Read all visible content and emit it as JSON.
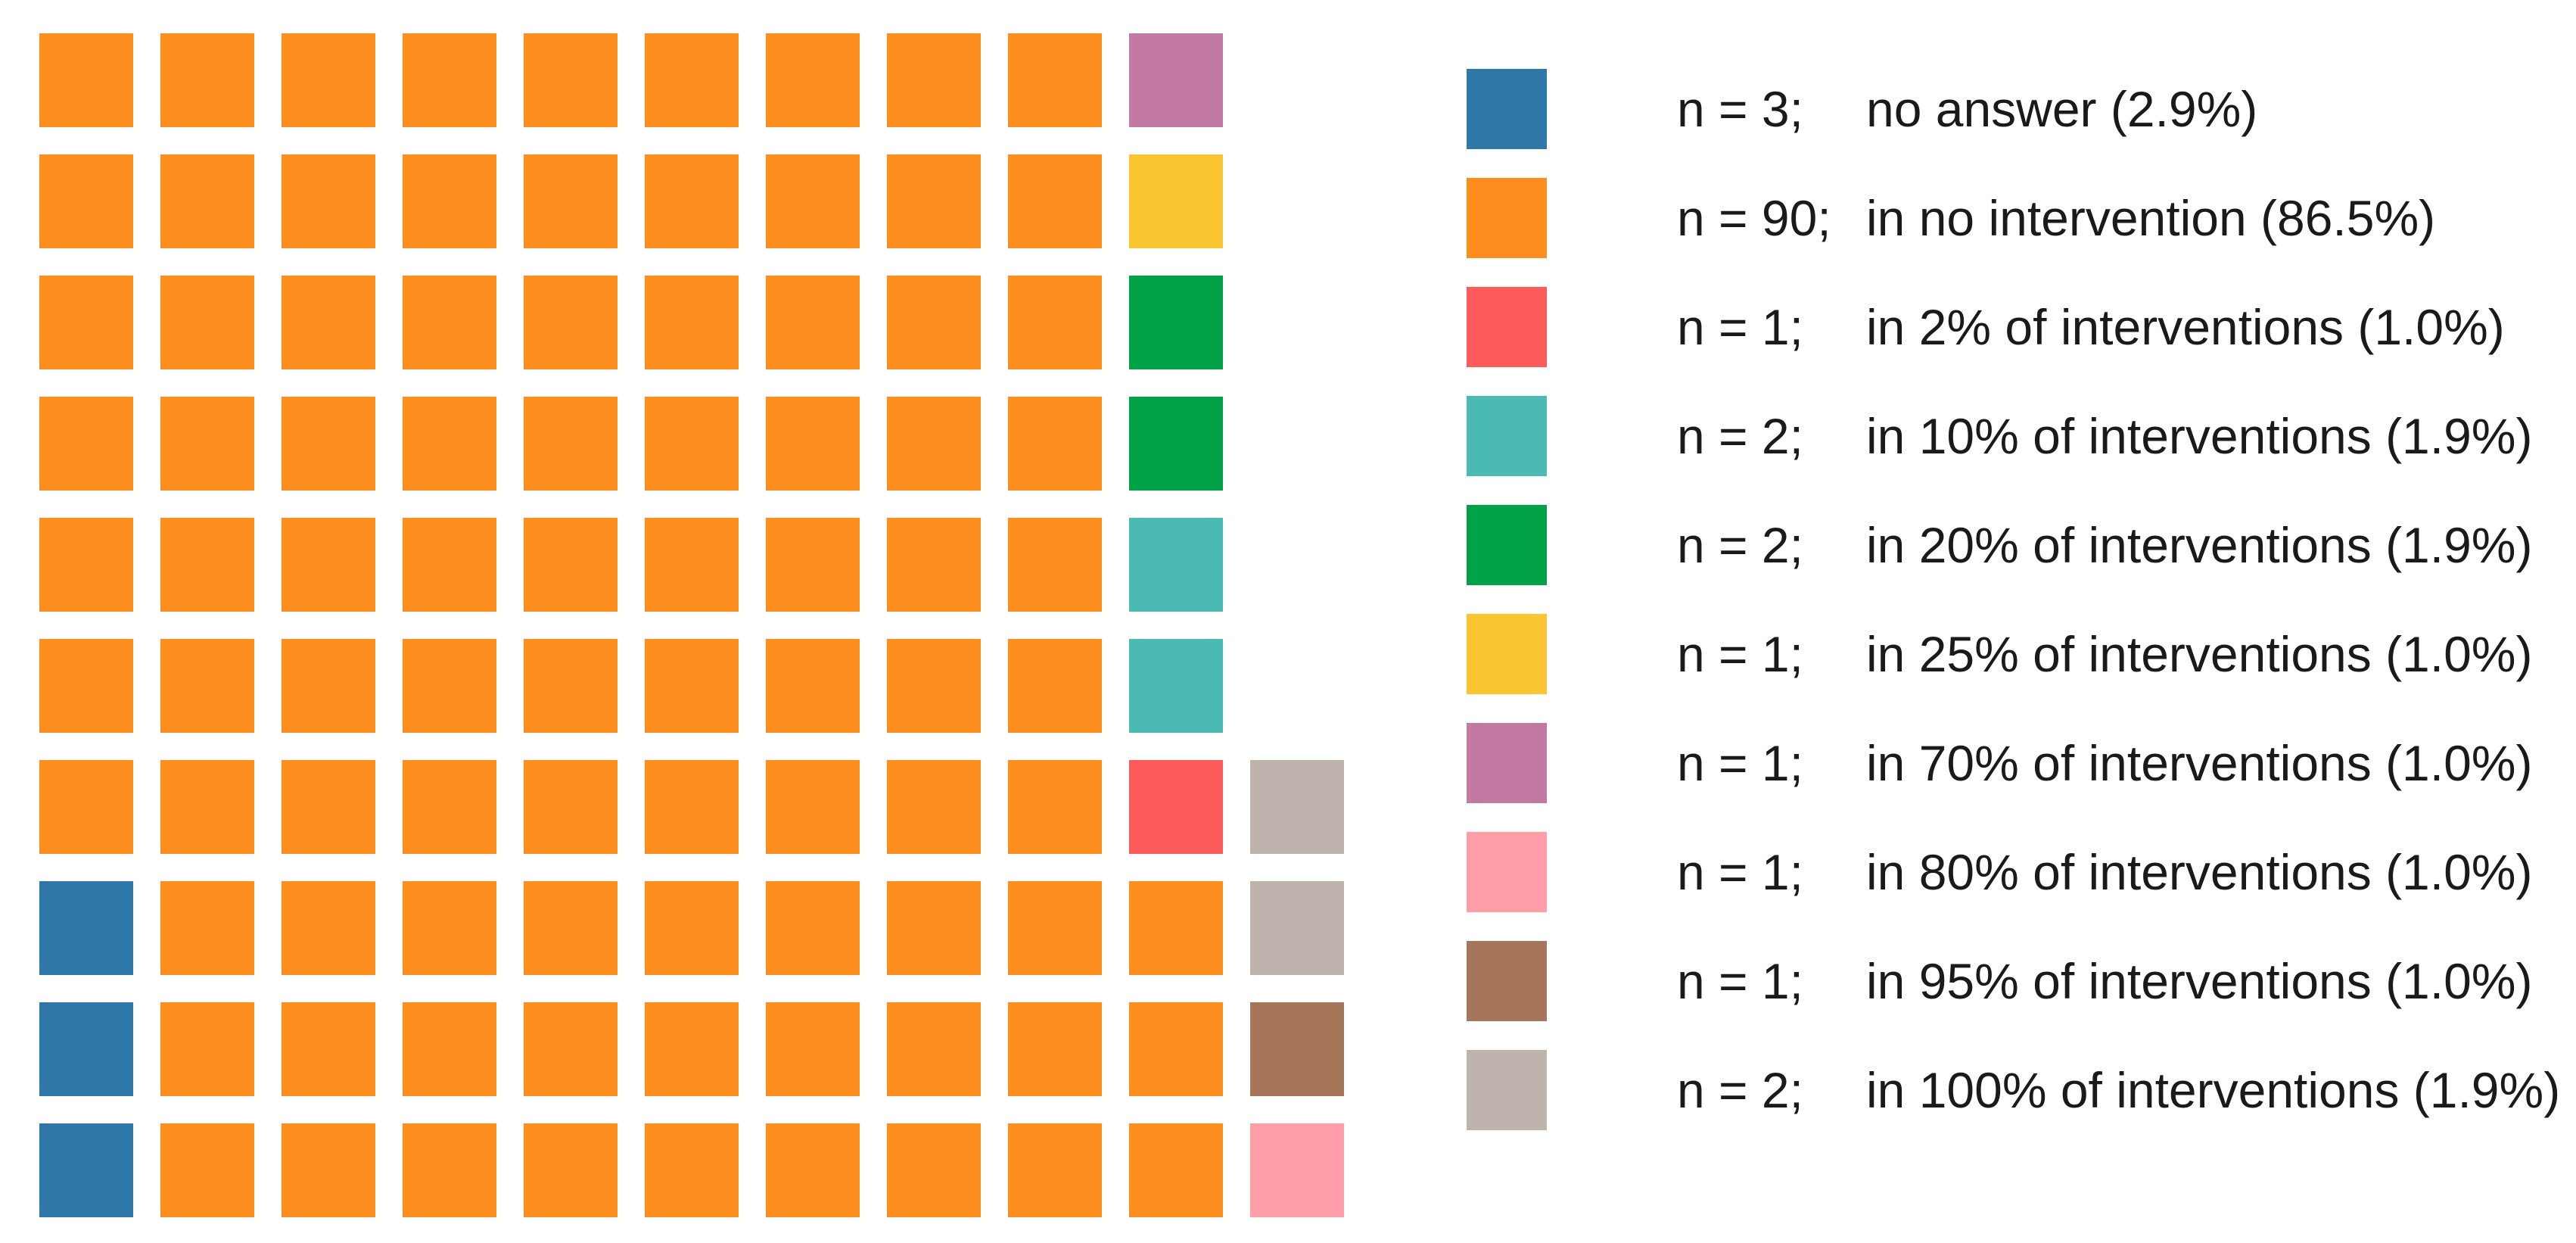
{
  "chart_data": {
    "type": "waffle",
    "total": 104,
    "rows": 10,
    "categories": [
      {
        "key": "no_answer",
        "n_text": "n = 3;",
        "label": "no answer (2.9%)",
        "count": 3,
        "percent": 2.9,
        "color": "#2e78a8"
      },
      {
        "key": "none",
        "n_text": "n = 90;",
        "label": "in no intervention (86.5%)",
        "count": 90,
        "percent": 86.5,
        "color": "#fd8e1e"
      },
      {
        "key": "p2",
        "n_text": "n = 1;",
        "label": "in 2% of interventions (1.0%)",
        "count": 1,
        "percent": 1.0,
        "color": "#fd5a5c"
      },
      {
        "key": "p10",
        "n_text": "n = 2;",
        "label": "in 10% of interventions (1.9%)",
        "count": 2,
        "percent": 1.9,
        "color": "#4bb9b4"
      },
      {
        "key": "p20",
        "n_text": "n = 2;",
        "label": "in 20% of interventions (1.9%)",
        "count": 2,
        "percent": 1.9,
        "color": "#00a246"
      },
      {
        "key": "p25",
        "n_text": "n = 1;",
        "label": "in 25% of interventions (1.0%)",
        "count": 1,
        "percent": 1.0,
        "color": "#f9c631"
      },
      {
        "key": "p70",
        "n_text": "n = 1;",
        "label": "in 70% of interventions (1.0%)",
        "count": 1,
        "percent": 1.0,
        "color": "#c27aa3"
      },
      {
        "key": "p80",
        "n_text": "n = 1;",
        "label": "in 80% of interventions (1.0%)",
        "count": 1,
        "percent": 1.0,
        "color": "#ff9ea8"
      },
      {
        "key": "p95",
        "n_text": "n = 1;",
        "label": "in 95% of interventions (1.0%)",
        "count": 1,
        "percent": 1.0,
        "color": "#a6765a"
      },
      {
        "key": "p100",
        "n_text": "n = 2;",
        "label": "in 100% of interventions (1.9%)",
        "count": 2,
        "percent": 1.9,
        "color": "#bfb3ae"
      }
    ],
    "legend_position": "right"
  }
}
